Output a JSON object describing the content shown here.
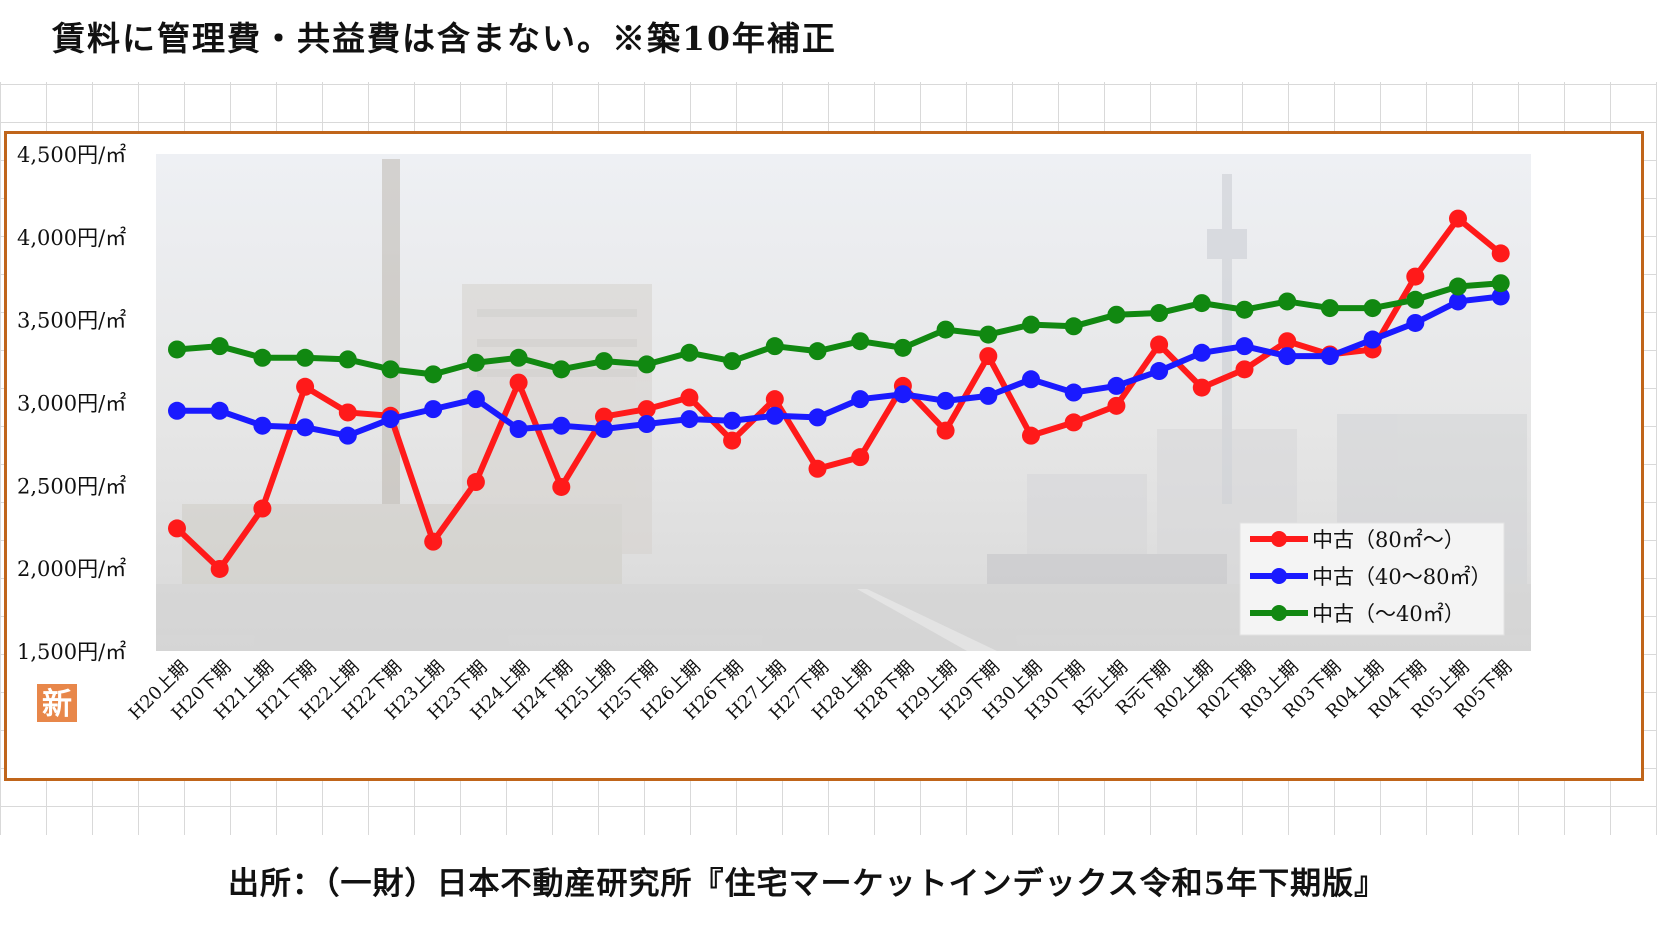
{
  "header": {
    "note": "賃料に管理費・共益費は含まない。※築10年補正"
  },
  "footer": {
    "source": "出所：（一財）日本不動産研究所『住宅マーケットインデックス令和5年下期版』"
  },
  "badge": {
    "label": "新"
  },
  "chart_data": {
    "type": "line",
    "title": "",
    "xlabel": "",
    "ylabel": "",
    "ylim": [
      1500,
      4500
    ],
    "yticks": [
      4500,
      4000,
      3500,
      3000,
      2500,
      2000,
      1500
    ],
    "ytick_labels": [
      "4,500円/㎡",
      "4,000円/㎡",
      "3,500円/㎡",
      "3,000円/㎡",
      "2,500円/㎡",
      "2,000円/㎡",
      "1,500円/㎡"
    ],
    "categories": [
      "H20上期",
      "H20下期",
      "H21上期",
      "H21下期",
      "H22上期",
      "H22下期",
      "H23上期",
      "H23下期",
      "H24上期",
      "H24下期",
      "H25上期",
      "H25下期",
      "H26上期",
      "H26下期",
      "H27上期",
      "H27下期",
      "H28上期",
      "H28下期",
      "H29上期",
      "H29下期",
      "H30上期",
      "H30下期",
      "R元上期",
      "R元下期",
      "R02上期",
      "R02下期",
      "R03上期",
      "R03下期",
      "R04上期",
      "R04下期",
      "R05上期",
      "R05下期"
    ],
    "grid": false,
    "legend_position": "bottom-right",
    "series": [
      {
        "name": "中古（80㎡～）",
        "color": "#ff1a1a",
        "values": [
          2240,
          1995,
          2360,
          3095,
          2940,
          2920,
          2160,
          2520,
          3120,
          2490,
          2915,
          2960,
          3030,
          2770,
          3020,
          2600,
          2670,
          3100,
          2830,
          3280,
          2800,
          2880,
          2980,
          3350,
          3090,
          3200,
          3370,
          3290,
          3320,
          3760,
          4110,
          3900
        ]
      },
      {
        "name": "中古（40～80㎡）",
        "color": "#1a1aff",
        "values": [
          2950,
          2950,
          2860,
          2850,
          2800,
          2900,
          2960,
          3020,
          2840,
          2860,
          2840,
          2870,
          2900,
          2890,
          2920,
          2910,
          3020,
          3050,
          3010,
          3040,
          3140,
          3060,
          3100,
          3190,
          3300,
          3340,
          3280,
          3280,
          3380,
          3480,
          3610,
          3640
        ]
      },
      {
        "name": "中古（～40㎡）",
        "color": "#118811",
        "values": [
          3320,
          3340,
          3270,
          3270,
          3260,
          3200,
          3170,
          3240,
          3270,
          3200,
          3250,
          3230,
          3300,
          3250,
          3340,
          3310,
          3370,
          3330,
          3440,
          3410,
          3470,
          3460,
          3530,
          3540,
          3600,
          3560,
          3610,
          3570,
          3570,
          3620,
          3700,
          3720
        ]
      }
    ]
  }
}
